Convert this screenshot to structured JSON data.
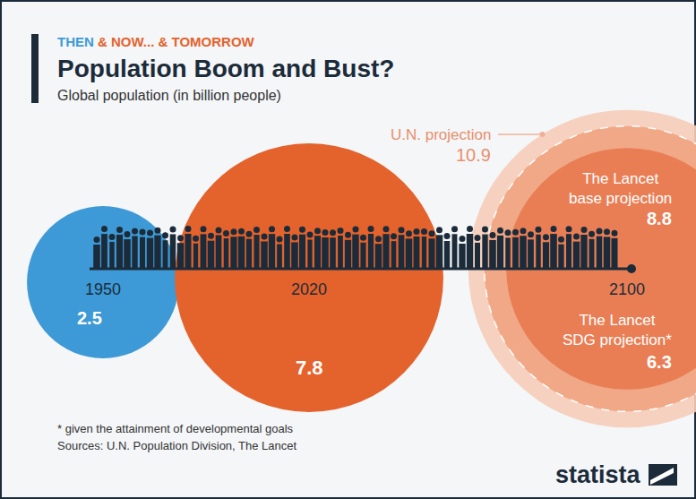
{
  "chart_data": {
    "type": "bubble",
    "kicker": "THEN & NOW... & TOMORROW",
    "title": "Population Boom and Bust?",
    "subtitle": "Global population (in billion people)",
    "categories": [
      "1950",
      "2020",
      "2100"
    ],
    "bubbles": [
      {
        "category": "1950",
        "value": 2.5,
        "color": "#3d9ad6"
      },
      {
        "category": "2020",
        "value": 7.8,
        "color": "#e4622b"
      },
      {
        "category": "2100",
        "label": "U.N. projection",
        "value": 10.9,
        "color": "#f6cdb8"
      },
      {
        "category": "2100",
        "label": "The Lancet base projection",
        "value": 8.8,
        "color": "#f0a886"
      },
      {
        "category": "2100",
        "label": "The Lancet SDG projection*",
        "value": 6.3,
        "color": "#e97e55"
      }
    ],
    "data_labels": true,
    "tick_labels": false,
    "footnote": "* given the attainment of developmental goals",
    "source": "Sources: U.N. Population Division, The Lancet",
    "brand": "statista"
  }
}
